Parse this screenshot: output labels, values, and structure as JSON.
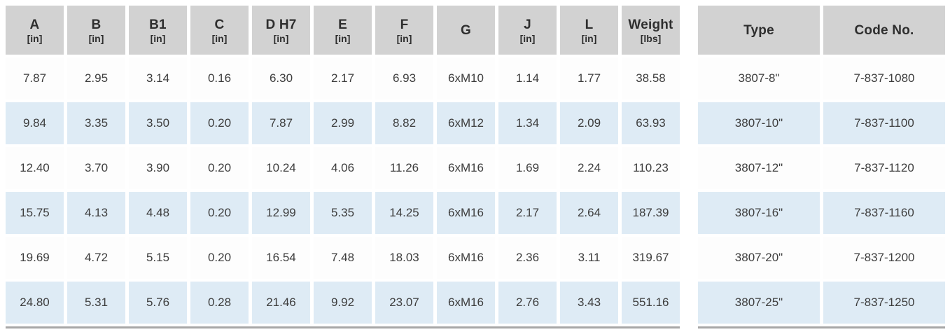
{
  "left_table": {
    "name": "dimensions-table",
    "columns": [
      {
        "label": "A",
        "unit": "[in]"
      },
      {
        "label": "B",
        "unit": "[in]"
      },
      {
        "label": "B1",
        "unit": "[in]"
      },
      {
        "label": "C",
        "unit": "[in]"
      },
      {
        "label": "D H7",
        "unit": "[in]"
      },
      {
        "label": "E",
        "unit": "[in]"
      },
      {
        "label": "F",
        "unit": "[in]"
      },
      {
        "label": "G",
        "unit": ""
      },
      {
        "label": "J",
        "unit": "[in]"
      },
      {
        "label": "L",
        "unit": "[in]"
      },
      {
        "label": "Weight",
        "unit": "[lbs]"
      }
    ],
    "rows": [
      [
        "7.87",
        "2.95",
        "3.14",
        "0.16",
        "6.30",
        "2.17",
        "6.93",
        "6xM10",
        "1.14",
        "1.77",
        "38.58"
      ],
      [
        "9.84",
        "3.35",
        "3.50",
        "0.20",
        "7.87",
        "2.99",
        "8.82",
        "6xM12",
        "1.34",
        "2.09",
        "63.93"
      ],
      [
        "12.40",
        "3.70",
        "3.90",
        "0.20",
        "10.24",
        "4.06",
        "11.26",
        "6xM16",
        "1.69",
        "2.24",
        "110.23"
      ],
      [
        "15.75",
        "4.13",
        "4.48",
        "0.20",
        "12.99",
        "5.35",
        "14.25",
        "6xM16",
        "2.17",
        "2.64",
        "187.39"
      ],
      [
        "19.69",
        "4.72",
        "5.15",
        "0.20",
        "16.54",
        "7.48",
        "18.03",
        "6xM16",
        "2.36",
        "3.11",
        "319.67"
      ],
      [
        "24.80",
        "5.31",
        "5.76",
        "0.28",
        "21.46",
        "9.92",
        "23.07",
        "6xM16",
        "2.76",
        "3.43",
        "551.16"
      ]
    ]
  },
  "right_table": {
    "name": "ordering-table",
    "columns": [
      {
        "label": "Type",
        "unit": ""
      },
      {
        "label": "Code No.",
        "unit": ""
      }
    ],
    "rows": [
      [
        "3807-8\"",
        "7-837-1080"
      ],
      [
        "3807-10\"",
        "7-837-1100"
      ],
      [
        "3807-12\"",
        "7-837-1120"
      ],
      [
        "3807-16\"",
        "7-837-1160"
      ],
      [
        "3807-20\"",
        "7-837-1200"
      ],
      [
        "3807-25\"",
        "7-837-1250"
      ]
    ]
  },
  "colors": {
    "header_background": "#d2d2d2",
    "alt_row_background": "#deebf5",
    "row_background": "#fdfdfd",
    "bottom_border": "#a7a7a7",
    "text": "#3d3d3d"
  }
}
